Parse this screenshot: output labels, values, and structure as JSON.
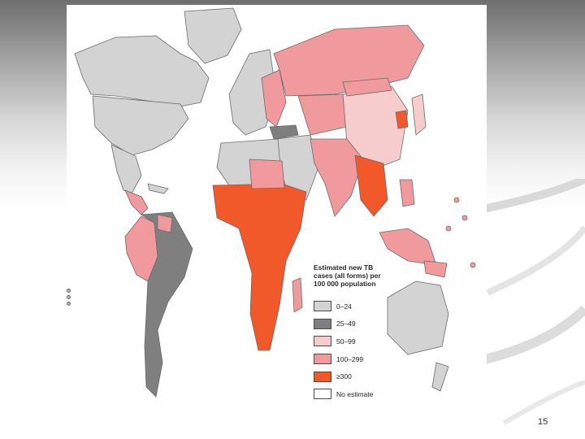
{
  "legend": {
    "title": "Estimated new TB cases (all forms) per 100 000 population",
    "items": [
      {
        "label": "0–24",
        "color": "#d3d3d3"
      },
      {
        "label": "25–49",
        "color": "#7f7f7f"
      },
      {
        "label": "50–99",
        "color": "#f7cccc"
      },
      {
        "label": "100–299",
        "color": "#f09a9d"
      },
      {
        "label": "≥300",
        "color": "#f1592b"
      },
      {
        "label": "No estimate",
        "color": "#ffffff"
      }
    ]
  },
  "page": {
    "number": "15"
  },
  "colors": {
    "low": "#d3d3d3",
    "mid_low": "#7f7f7f",
    "mid": "#f7cccc",
    "high": "#f09a9d",
    "very_high": "#f1592b",
    "none": "#ffffff"
  }
}
